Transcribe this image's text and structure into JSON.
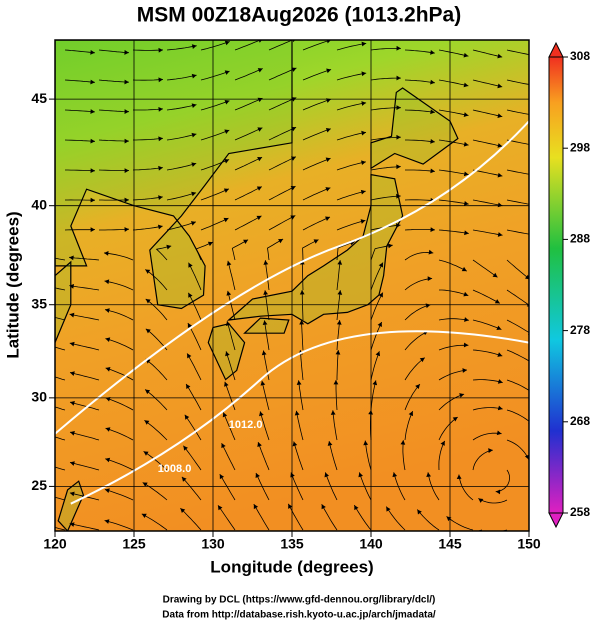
{
  "chart_data": {
    "type": "map",
    "title": "MSM 00Z18Aug2026 (1013.2hPa)",
    "xlabel": "Longitude (degrees)",
    "ylabel": "Latitude  (degrees)",
    "projection": "mercator",
    "xlim": [
      120,
      150
    ],
    "ylim": [
      22.4,
      47.6
    ],
    "xticks": [
      120,
      125,
      130,
      135,
      140,
      145,
      150
    ],
    "yticks": [
      25,
      30,
      35,
      40,
      45
    ],
    "grid": true,
    "colorbar": {
      "lim": [
        258,
        308
      ],
      "ticks": [
        258,
        268,
        278,
        288,
        298,
        308
      ]
    },
    "contour_labels": [
      "1008.0",
      "1012.0"
    ],
    "footer": [
      "Drawing by DCL (https://www.gfd-dennou.org/library/dcl/)",
      "Data from http://database.rish.kyoto-u.ac.jp/arch/jmadata/"
    ]
  }
}
